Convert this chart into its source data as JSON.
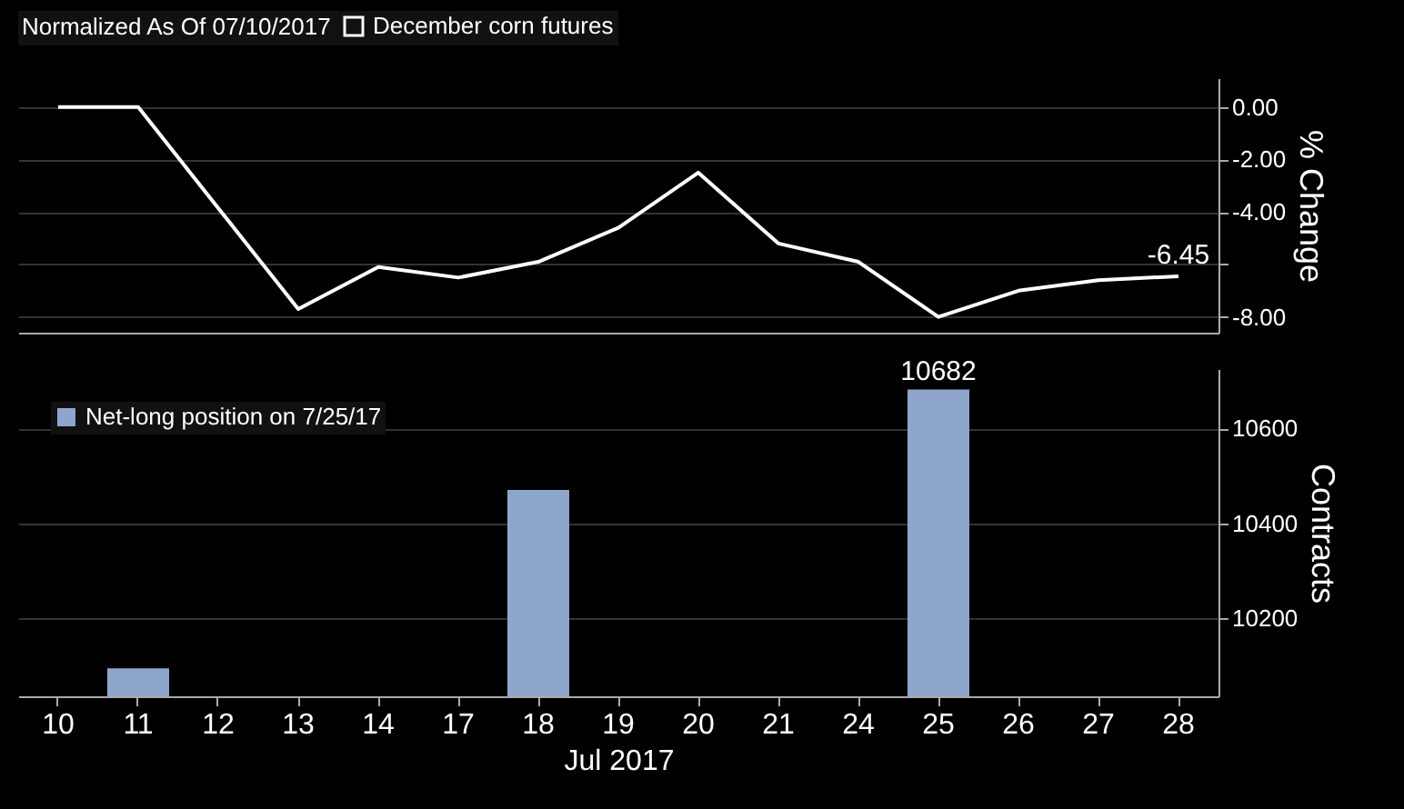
{
  "chart_data": [
    {
      "type": "line",
      "categories": [
        "10",
        "11",
        "12",
        "13",
        "14",
        "17",
        "18",
        "19",
        "20",
        "21",
        "24",
        "25",
        "26",
        "27",
        "28"
      ],
      "legend_title": "Normalized As Of 07/10/2017",
      "legend": "top",
      "ylabel": "% Change",
      "ylim": [
        -8.6,
        1.1
      ],
      "yticks": [
        {
          "value": 0,
          "label": "0.00"
        },
        {
          "value": -2,
          "label": "-2.00"
        },
        {
          "value": -4,
          "label": "-4.00"
        },
        {
          "value": -6,
          "label": null
        },
        {
          "value": -8,
          "label": "-8.00"
        }
      ],
      "grid": "y",
      "tick_labels": "y",
      "marker": "none",
      "line_style": "solid",
      "series": [
        {
          "name": "December corn futures",
          "color": "#ffffff",
          "values": [
            0.0,
            0.0,
            -3.85,
            -7.7,
            -6.1,
            -6.5,
            -5.9,
            -4.6,
            -2.5,
            -5.2,
            -5.9,
            -8.0,
            -7.0,
            -6.6,
            -6.45
          ],
          "value_labels": [
            null,
            null,
            null,
            null,
            null,
            null,
            null,
            null,
            null,
            null,
            null,
            null,
            null,
            null,
            "-6.45"
          ]
        }
      ]
    },
    {
      "type": "bar",
      "categories": [
        "10",
        "11",
        "12",
        "13",
        "14",
        "17",
        "18",
        "19",
        "20",
        "21",
        "24",
        "25",
        "26",
        "27",
        "28"
      ],
      "legend": "top left",
      "xlabel": "Jul 2017",
      "ylabel": "Contracts",
      "ylim": [
        10035,
        10725
      ],
      "yticks": [
        10200,
        10400,
        10600
      ],
      "grid": "y",
      "series": [
        {
          "name": "Net-long position on 7/25/17",
          "color": "#8fa6cc",
          "values": [
            null,
            10094,
            null,
            null,
            null,
            null,
            10470,
            null,
            null,
            null,
            null,
            10682,
            null,
            null,
            null
          ],
          "value_labels": [
            null,
            null,
            null,
            null,
            null,
            null,
            null,
            null,
            null,
            null,
            null,
            "10682",
            null,
            null,
            null
          ]
        }
      ]
    }
  ]
}
